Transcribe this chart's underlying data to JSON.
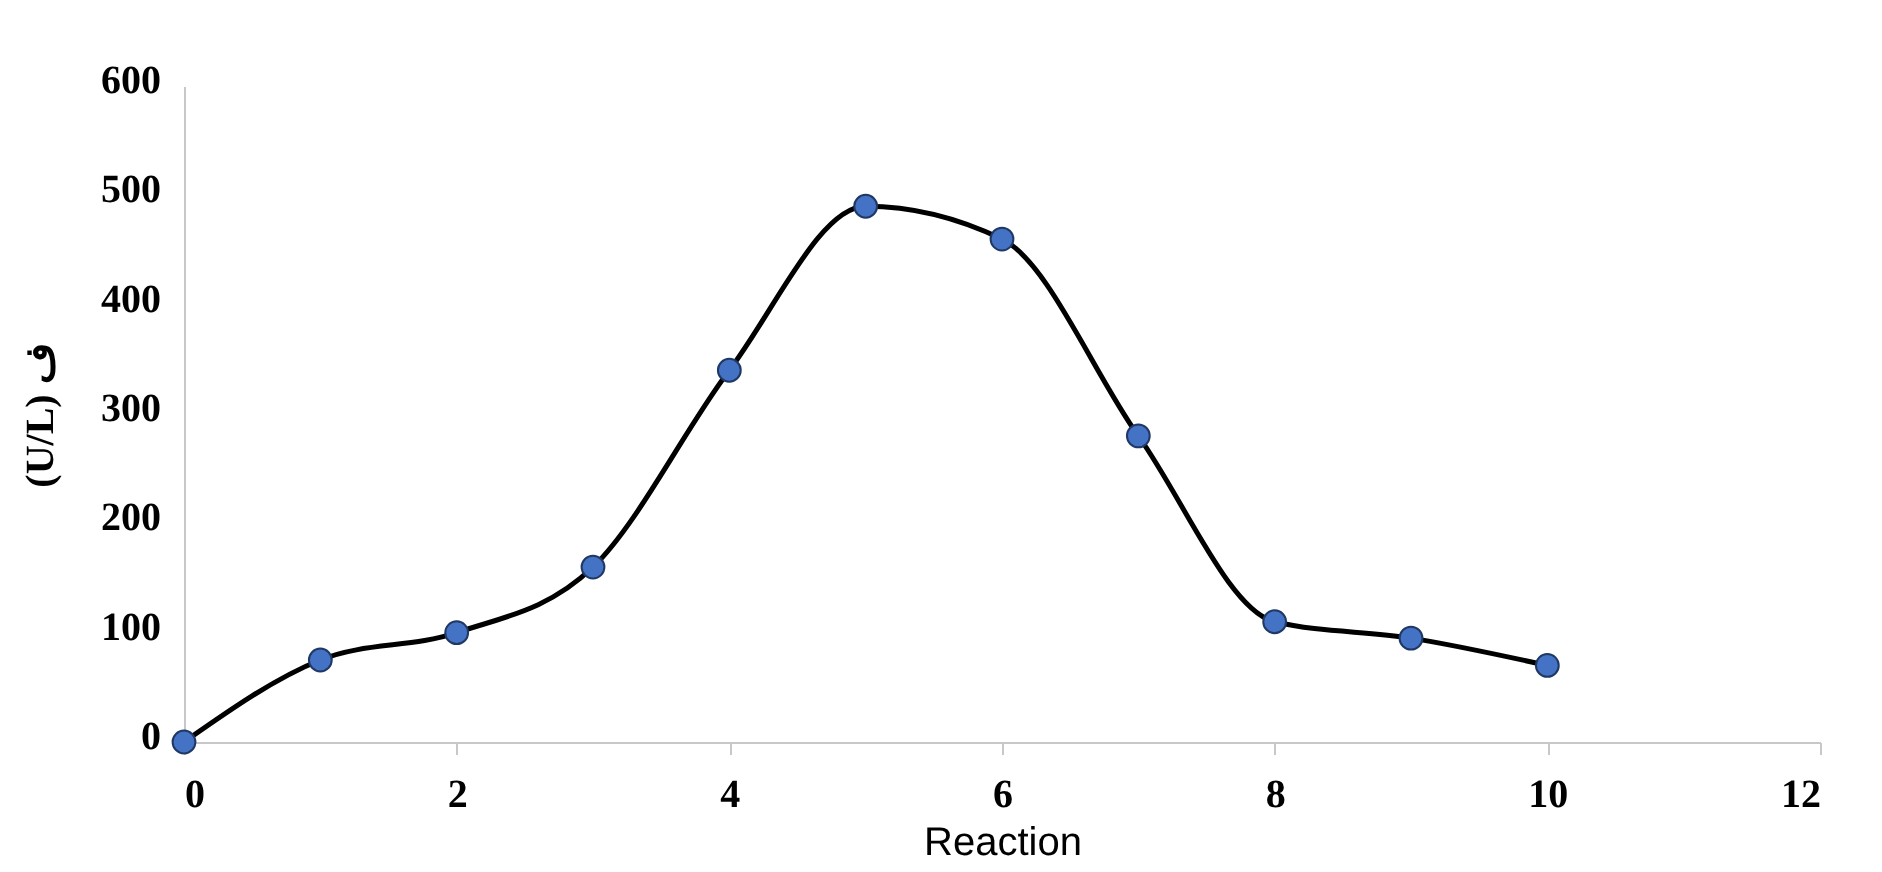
{
  "chart_data": {
    "type": "line",
    "xlabel": "Reaction",
    "ylabel": "(U/L) ف",
    "x": [
      0,
      1,
      2,
      3,
      4,
      5,
      6,
      7,
      8,
      9,
      10
    ],
    "series": [
      {
        "color": "#000000",
        "values": [
          0,
          75,
          100,
          160,
          340,
          490,
          460,
          280,
          110,
          95,
          70
        ]
      },
      {
        "type": "scatter",
        "color": "#4472c4",
        "values": [
          0,
          75,
          100,
          160,
          340,
          490,
          460,
          280,
          110,
          95,
          70
        ]
      }
    ],
    "grid": false,
    "xlim": [
      0,
      12
    ],
    "xticks": [
      0,
      2,
      4,
      6,
      8,
      10,
      12
    ],
    "ylim": [
      0,
      600
    ],
    "yticks": [
      0,
      100,
      200,
      300,
      400,
      500,
      600
    ]
  }
}
